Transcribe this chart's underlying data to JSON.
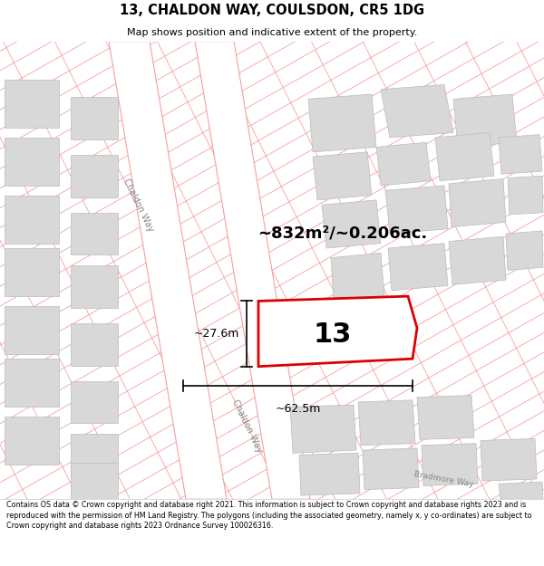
{
  "title": "13, CHALDON WAY, COULSDON, CR5 1DG",
  "subtitle": "Map shows position and indicative extent of the property.",
  "area_label": "~832m²/~0.206ac.",
  "number_label": "13",
  "dim_width": "~62.5m",
  "dim_height": "~27.6m",
  "footer": "Contains OS data © Crown copyright and database right 2021. This information is subject to Crown copyright and database rights 2023 and is reproduced with the permission of HM Land Registry. The polygons (including the associated geometry, namely x, y co-ordinates) are subject to Crown copyright and database rights 2023 Ordnance Survey 100026316.",
  "bg_color": "#ffffff",
  "road_line_color": "#f5a0a0",
  "building_color": "#d8d8d8",
  "building_edge": "#bbbbbb",
  "highlight_color": "#dd0000",
  "dim_line_color": "#000000",
  "road_label_color": "#888888",
  "road_label": "Chaldon Way",
  "road_label2": "Chaldon Way",
  "road_label3": "Bradmore Way",
  "title_fontsize": 10.5,
  "subtitle_fontsize": 8,
  "footer_fontsize": 5.8,
  "number_fontsize": 22,
  "area_fontsize": 13
}
